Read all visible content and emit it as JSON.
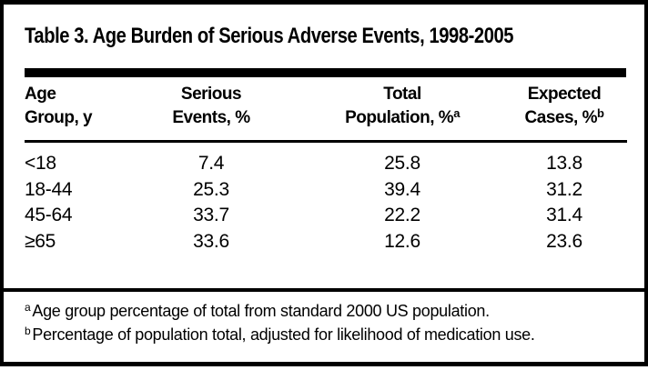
{
  "table": {
    "title": "Table 3. Age Burden of Serious Adverse Events, 1998-2005",
    "columns": [
      {
        "line1": "Age",
        "line2": "Group, y"
      },
      {
        "line1": "Serious",
        "line2": "Events, %"
      },
      {
        "line1": "Total",
        "line2": "Population, %",
        "sup": "a"
      },
      {
        "line1": "Expected",
        "line2": "Cases, %",
        "sup": "b"
      }
    ],
    "rows": [
      [
        "<18",
        "7.4",
        "25.8",
        "13.8"
      ],
      [
        "18-44",
        "25.3",
        "39.4",
        "31.2"
      ],
      [
        "45-64",
        "33.7",
        "22.2",
        "31.4"
      ],
      [
        "≥65",
        "33.6",
        "12.6",
        "23.6"
      ]
    ],
    "footnotes": [
      {
        "marker": "a",
        "text": "Age group percentage of total from standard 2000 US population."
      },
      {
        "marker": "b",
        "text": "Percentage of population total, adjusted for likelihood of medication use."
      }
    ],
    "colors": {
      "text": "#000000",
      "background": "#ffffff",
      "rule": "#000000"
    }
  },
  "chart_data": {
    "type": "table",
    "title": "Table 3. Age Burden of Serious Adverse Events, 1998-2005",
    "columns": [
      "Age Group, y",
      "Serious Events, %",
      "Total Population, %",
      "Expected Cases, %"
    ],
    "rows": [
      [
        "<18",
        7.4,
        25.8,
        13.8
      ],
      [
        "18-44",
        25.3,
        39.4,
        31.2
      ],
      [
        "45-64",
        33.7,
        22.2,
        31.4
      ],
      [
        "≥65",
        33.6,
        12.6,
        23.6
      ]
    ]
  }
}
